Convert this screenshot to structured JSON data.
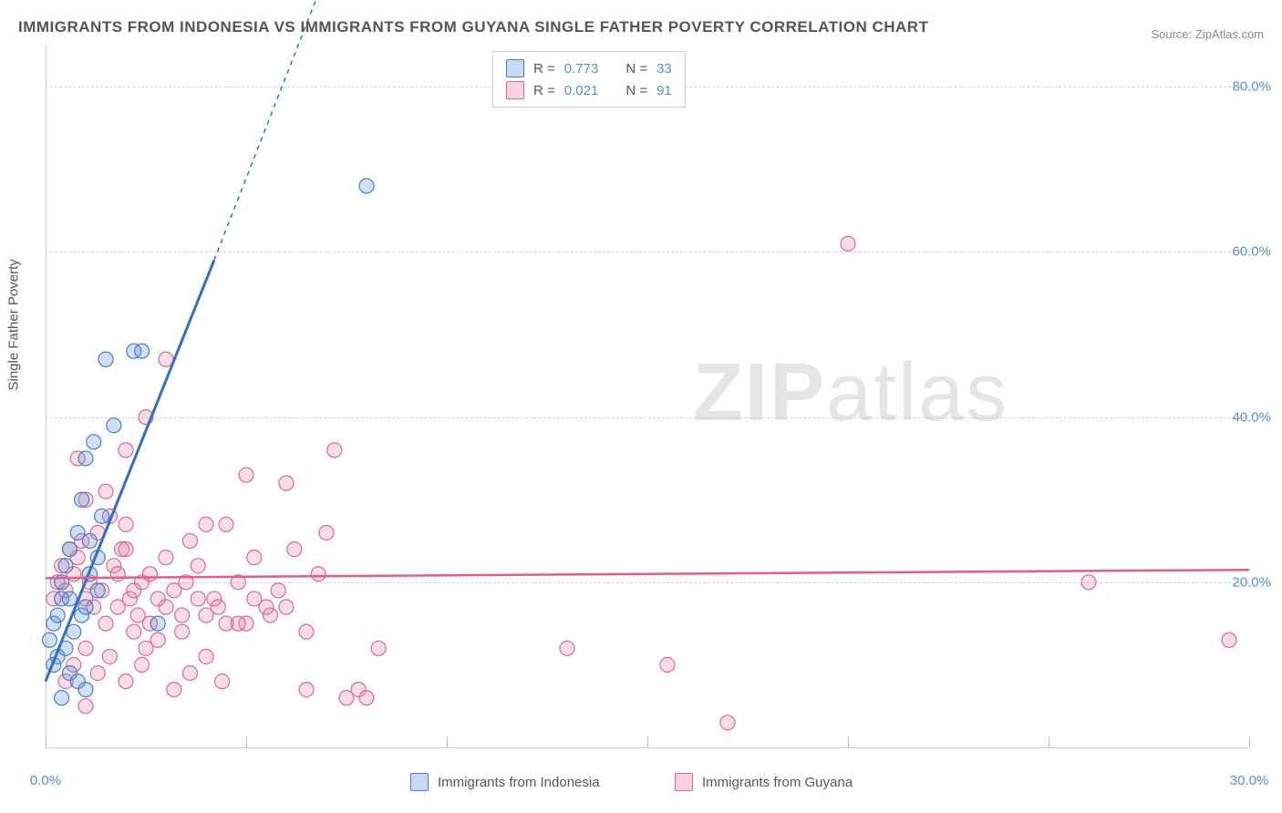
{
  "title": "IMMIGRANTS FROM INDONESIA VS IMMIGRANTS FROM GUYANA SINGLE FATHER POVERTY CORRELATION CHART",
  "source": "Source: ZipAtlas.com",
  "y_axis_label": "Single Father Poverty",
  "watermark": "ZIPatlas",
  "chart": {
    "type": "scatter",
    "xlim": [
      0,
      30
    ],
    "ylim": [
      0,
      85
    ],
    "x_ticks": [
      0,
      5,
      10,
      15,
      20,
      25,
      30
    ],
    "x_tick_labels": [
      "0.0%",
      "",
      "",
      "",
      "",
      "",
      "30.0%"
    ],
    "y_ticks": [
      20,
      40,
      60,
      80
    ],
    "y_tick_labels": [
      "20.0%",
      "40.0%",
      "60.0%",
      "80.0%"
    ],
    "grid_color": "#d5d5d5",
    "background_color": "#ffffff",
    "axis_color": "#cccccc",
    "tick_label_color": "#5a8cd4",
    "series": [
      {
        "name": "Immigrants from Indonesia",
        "marker_fill": "rgba(95,150,220,0.30)",
        "marker_stroke": "#4a7cc8",
        "marker_radius": 8,
        "line_color": "#2f6fc8",
        "line_width": 3,
        "R": "0.773",
        "N": "33",
        "points": [
          [
            0.1,
            13
          ],
          [
            0.2,
            15
          ],
          [
            0.3,
            16
          ],
          [
            0.4,
            18
          ],
          [
            0.4,
            20
          ],
          [
            0.5,
            22
          ],
          [
            0.6,
            24
          ],
          [
            0.7,
            14
          ],
          [
            0.8,
            26
          ],
          [
            0.9,
            30
          ],
          [
            1.0,
            17
          ],
          [
            1.0,
            35
          ],
          [
            1.2,
            37
          ],
          [
            1.3,
            19
          ],
          [
            1.5,
            47
          ],
          [
            1.7,
            39
          ],
          [
            2.2,
            48
          ],
          [
            2.4,
            48
          ],
          [
            0.2,
            10
          ],
          [
            0.3,
            11
          ],
          [
            0.5,
            12
          ],
          [
            0.6,
            9
          ],
          [
            0.8,
            8
          ],
          [
            1.0,
            7
          ],
          [
            1.1,
            21
          ],
          [
            1.3,
            23
          ],
          [
            2.8,
            15
          ],
          [
            0.4,
            6
          ],
          [
            0.6,
            18
          ],
          [
            0.9,
            16
          ],
          [
            1.1,
            25
          ],
          [
            1.4,
            28
          ],
          [
            8.0,
            68
          ]
        ],
        "trend": {
          "x1": 0.0,
          "y1": 8,
          "x2": 4.2,
          "y2": 59,
          "dash_x2": 7.5,
          "dash_y2": 100
        }
      },
      {
        "name": "Immigrants from Guyana",
        "marker_fill": "rgba(235,130,160,0.28)",
        "marker_stroke": "#d86a8f",
        "marker_radius": 8,
        "line_color": "#e75a8a",
        "line_width": 2.5,
        "R": "0.021",
        "N": "91",
        "points": [
          [
            0.2,
            18
          ],
          [
            0.3,
            20
          ],
          [
            0.4,
            22
          ],
          [
            0.5,
            19
          ],
          [
            0.6,
            24
          ],
          [
            0.7,
            21
          ],
          [
            0.8,
            23
          ],
          [
            0.9,
            25
          ],
          [
            1.0,
            18
          ],
          [
            1.1,
            20
          ],
          [
            1.2,
            17
          ],
          [
            1.3,
            26
          ],
          [
            1.4,
            19
          ],
          [
            1.5,
            15
          ],
          [
            1.6,
            28
          ],
          [
            1.7,
            22
          ],
          [
            1.8,
            21
          ],
          [
            1.9,
            24
          ],
          [
            2.0,
            27
          ],
          [
            2.1,
            18
          ],
          [
            2.2,
            14
          ],
          [
            2.3,
            16
          ],
          [
            2.4,
            20
          ],
          [
            2.5,
            12
          ],
          [
            2.6,
            15
          ],
          [
            2.8,
            18
          ],
          [
            3.0,
            17
          ],
          [
            3.2,
            19
          ],
          [
            3.4,
            14
          ],
          [
            3.6,
            25
          ],
          [
            3.8,
            22
          ],
          [
            4.0,
            16
          ],
          [
            4.2,
            18
          ],
          [
            4.5,
            27
          ],
          [
            4.8,
            20
          ],
          [
            5.0,
            15
          ],
          [
            5.2,
            23
          ],
          [
            5.5,
            17
          ],
          [
            5.8,
            19
          ],
          [
            6.0,
            32
          ],
          [
            6.2,
            24
          ],
          [
            6.5,
            14
          ],
          [
            6.8,
            21
          ],
          [
            7.0,
            26
          ],
          [
            7.2,
            36
          ],
          [
            7.5,
            6
          ],
          [
            7.8,
            7
          ],
          [
            8.0,
            6
          ],
          [
            8.3,
            12
          ],
          [
            2.5,
            40
          ],
          [
            3.0,
            47
          ],
          [
            2.0,
            36
          ],
          [
            1.5,
            31
          ],
          [
            1.0,
            30
          ],
          [
            0.8,
            35
          ],
          [
            4.0,
            27
          ],
          [
            5.0,
            33
          ],
          [
            6.0,
            17
          ],
          [
            6.5,
            7
          ],
          [
            13.0,
            12
          ],
          [
            15.5,
            10
          ],
          [
            17.0,
            3
          ],
          [
            20.0,
            61
          ],
          [
            26.0,
            20
          ],
          [
            29.5,
            13
          ],
          [
            0.5,
            8
          ],
          [
            0.7,
            10
          ],
          [
            1.0,
            12
          ],
          [
            1.3,
            9
          ],
          [
            1.6,
            11
          ],
          [
            2.0,
            8
          ],
          [
            2.4,
            10
          ],
          [
            2.8,
            13
          ],
          [
            3.2,
            7
          ],
          [
            3.6,
            9
          ],
          [
            4.0,
            11
          ],
          [
            4.4,
            8
          ],
          [
            4.3,
            17
          ],
          [
            4.8,
            15
          ],
          [
            5.2,
            18
          ],
          [
            5.6,
            16
          ],
          [
            2.0,
            24
          ],
          [
            3.5,
            20
          ],
          [
            4.5,
            15
          ],
          [
            1.8,
            17
          ],
          [
            2.2,
            19
          ],
          [
            2.6,
            21
          ],
          [
            3.0,
            23
          ],
          [
            3.4,
            16
          ],
          [
            3.8,
            18
          ],
          [
            1.0,
            5
          ]
        ],
        "trend": {
          "x1": 0.0,
          "y1": 20.5,
          "x2": 30.0,
          "y2": 21.5
        }
      }
    ]
  },
  "legend_top": {
    "rows": [
      {
        "swatch": "blue",
        "R_label": "R =",
        "R": "0.773",
        "N_label": "N =",
        "N": "33"
      },
      {
        "swatch": "pink",
        "R_label": "R =",
        "R": "0.021",
        "N_label": "N =",
        "N": "91"
      }
    ]
  },
  "legend_bottom": [
    {
      "swatch": "blue",
      "label": "Immigrants from Indonesia"
    },
    {
      "swatch": "pink",
      "label": "Immigrants from Guyana"
    }
  ]
}
